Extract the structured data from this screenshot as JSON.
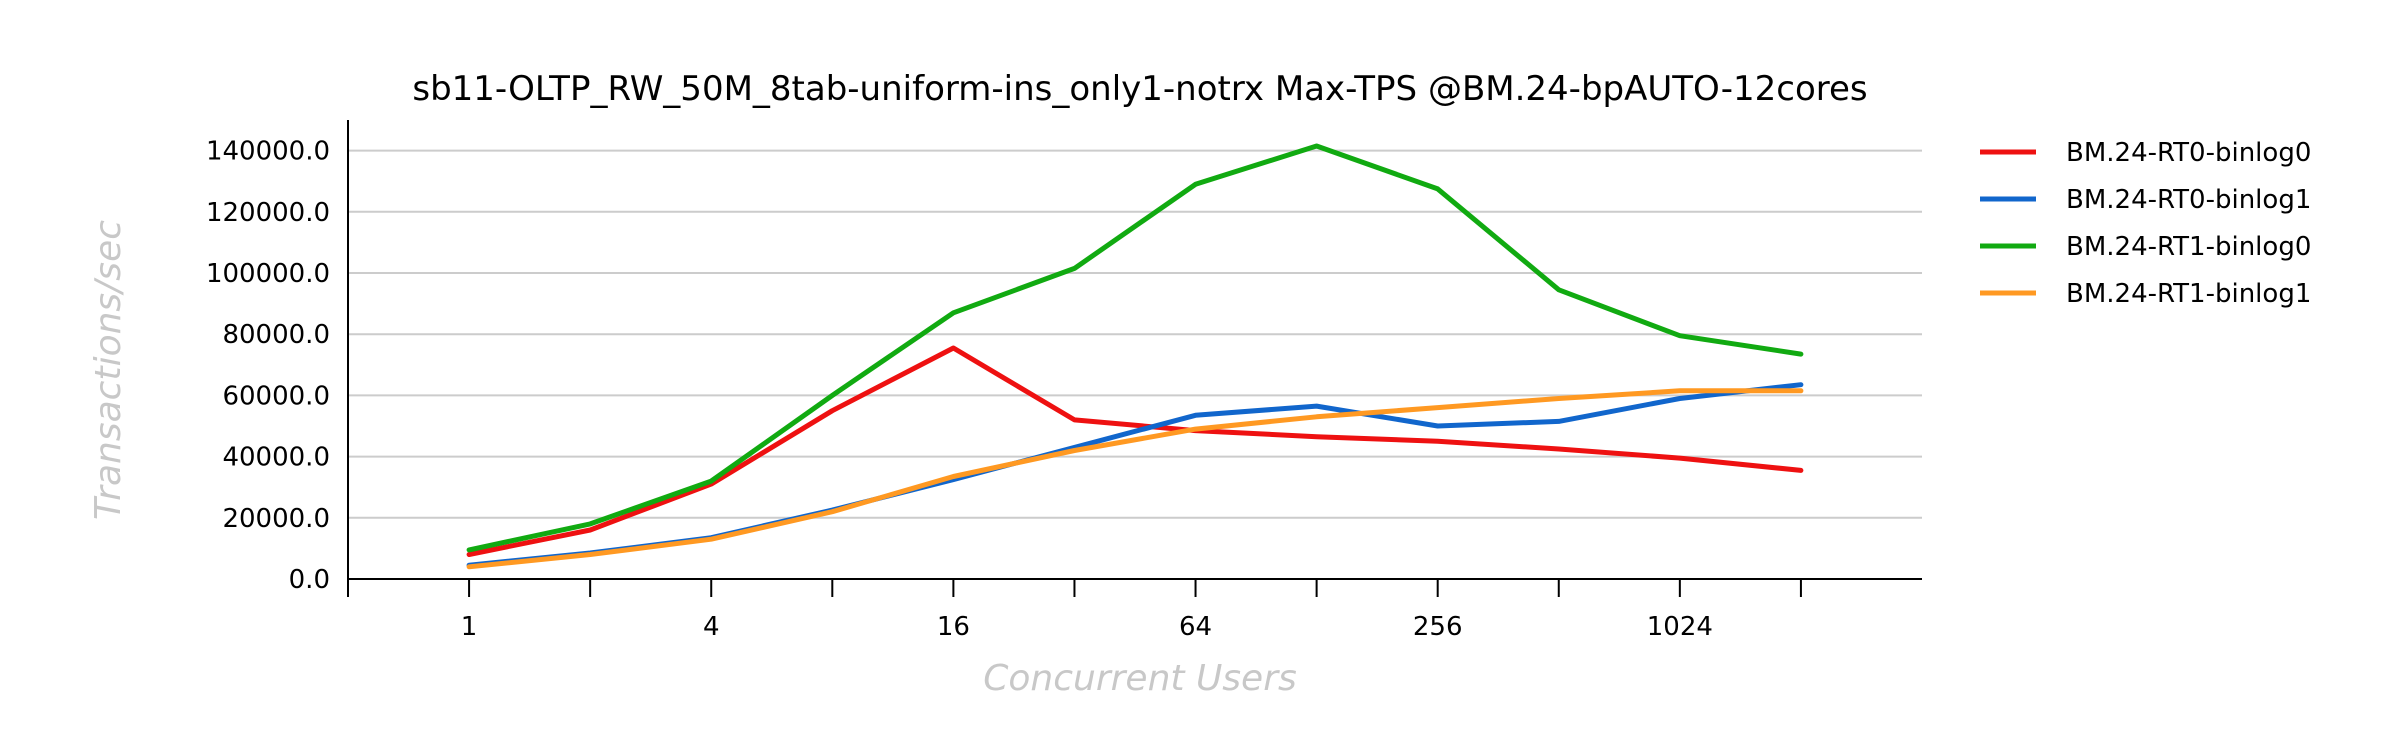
{
  "chart_data": {
    "type": "line",
    "title": "sb11-OLTP_RW_50M_8tab-uniform-ins_only1-notrx Max-TPS @BM.24-bpAUTO-12cores",
    "xlabel": "Concurrent Users",
    "ylabel": "Transactions/sec",
    "x_scale": "log2",
    "x": [
      1,
      2,
      4,
      8,
      16,
      32,
      64,
      128,
      256,
      512,
      1024,
      2048
    ],
    "x_tick_values": [
      1,
      4,
      16,
      64,
      256,
      1024
    ],
    "x_tick_labels": [
      "1",
      "4",
      "16",
      "64",
      "256",
      "1024"
    ],
    "xlim": [
      0.5,
      4096
    ],
    "ylim": [
      0,
      150000
    ],
    "y_ticks": [
      0,
      20000,
      40000,
      60000,
      80000,
      100000,
      120000,
      140000
    ],
    "y_tick_labels": [
      "0.0",
      "20000.0",
      "40000.0",
      "60000.0",
      "80000.0",
      "100000.0",
      "120000.0",
      "140000.0"
    ],
    "grid": "horizontal",
    "legend_position": "right-top",
    "series": [
      {
        "name": "BM.24-RT0-binlog0",
        "color": "#ee1111",
        "values": [
          8000,
          16000,
          31000,
          55000,
          75500,
          52000,
          48500,
          46500,
          45000,
          42500,
          39500,
          35500
        ]
      },
      {
        "name": "BM.24-RT0-binlog1",
        "color": "#1166cc",
        "values": [
          4500,
          8500,
          13500,
          22500,
          32500,
          43000,
          53500,
          56500,
          50000,
          51500,
          59000,
          63500
        ]
      },
      {
        "name": "BM.24-RT1-binlog0",
        "color": "#11aa11",
        "values": [
          9500,
          18000,
          32000,
          60000,
          87000,
          101500,
          129000,
          141500,
          127500,
          94500,
          79500,
          73500
        ]
      },
      {
        "name": "BM.24-RT1-binlog1",
        "color": "#ff9922",
        "values": [
          4000,
          8000,
          13000,
          22000,
          33500,
          42000,
          49000,
          53000,
          56000,
          59000,
          61500,
          61500
        ]
      }
    ]
  }
}
